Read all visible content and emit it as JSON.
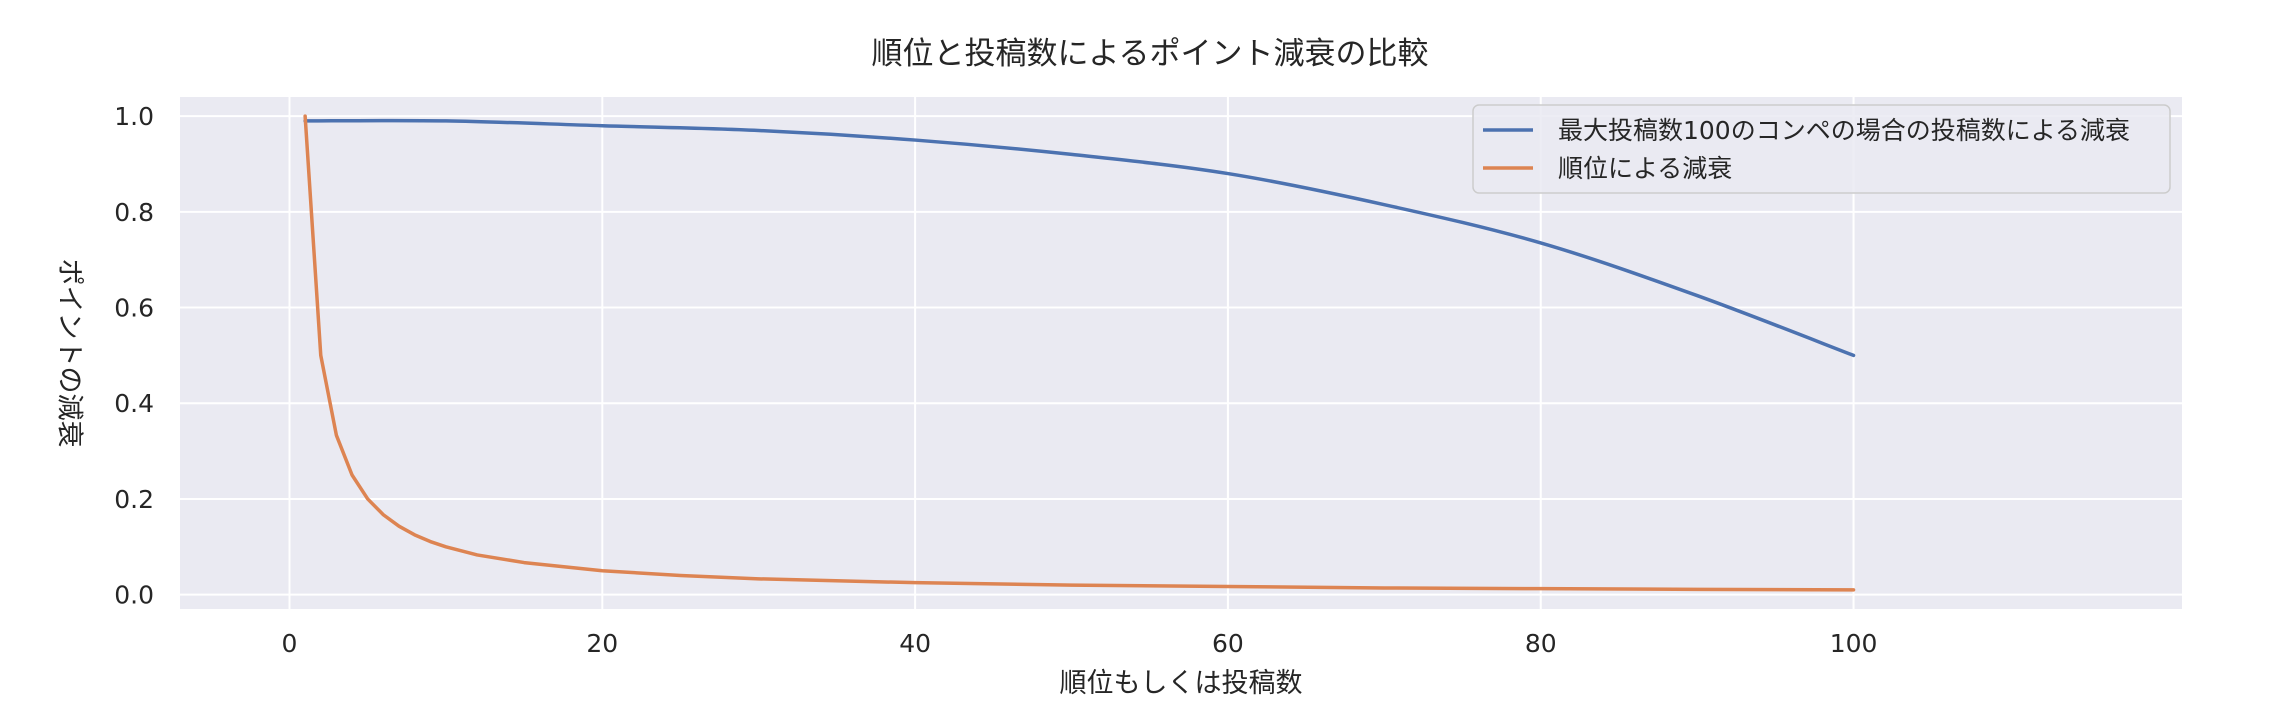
{
  "chart_data": {
    "type": "line",
    "title": "順位と投稿数によるポイント減衰の比較",
    "xlabel": "順位もしくは投稿数",
    "ylabel": "ポイントの減衰",
    "xlim": [
      -7,
      121
    ],
    "ylim": [
      -0.03,
      1.04
    ],
    "xticks": [
      0,
      20,
      40,
      60,
      80,
      100
    ],
    "yticks": [
      0.0,
      0.2,
      0.4,
      0.6,
      0.8,
      1.0
    ],
    "xtick_labels": [
      "0",
      "20",
      "40",
      "60",
      "80",
      "100"
    ],
    "ytick_labels": [
      "0.0",
      "0.2",
      "0.4",
      "0.6",
      "0.8",
      "1.0"
    ],
    "grid": true,
    "legend_position": "top-right",
    "series": [
      {
        "name": "最大投稿数100のコンペの場合の投稿数による減衰",
        "color": "#4c72b0",
        "x": [
          1,
          10,
          20,
          30,
          40,
          50,
          60,
          70,
          80,
          90,
          100
        ],
        "y": [
          0.99,
          0.99,
          0.98,
          0.97,
          0.95,
          0.92,
          0.88,
          0.815,
          0.735,
          0.625,
          0.5
        ]
      },
      {
        "name": "順位による減衰",
        "color": "#dd8452",
        "x": [
          1,
          2,
          3,
          4,
          5,
          6,
          7,
          8,
          9,
          10,
          12,
          15,
          20,
          25,
          30,
          40,
          50,
          60,
          70,
          80,
          90,
          100
        ],
        "y": [
          1.0,
          0.5,
          0.333,
          0.25,
          0.2,
          0.167,
          0.143,
          0.125,
          0.111,
          0.1,
          0.083,
          0.067,
          0.05,
          0.04,
          0.033,
          0.025,
          0.02,
          0.017,
          0.014,
          0.0125,
          0.011,
          0.01
        ]
      }
    ]
  }
}
